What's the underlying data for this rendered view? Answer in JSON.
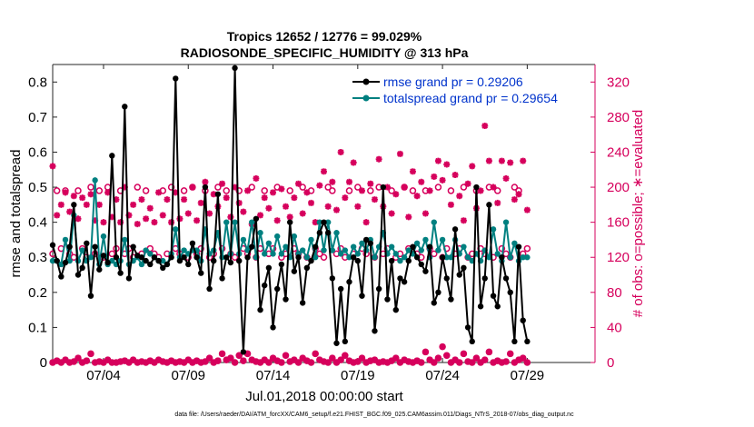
{
  "chart_data": {
    "type": "line",
    "title_line1": "Tropics 12652 / 12776 = 99.029%",
    "title_line2": "RADIOSONDE_SPECIFIC_HUMIDITY @ 313 hPa",
    "xlabel": "Jul.01,2018 00:00:00 start",
    "ylabel_left": "rmse and totalspread",
    "ylabel_right": "# of obs: o=possible; ∗=evaluated",
    "footer": "data file: /Users/raeder/DAI/ATM_forcXX/CAM6_setup/f.e21.FHIST_BGC.f09_025.CAM6assim.011/Diags_NTrS_2018-07/obs_diag_output.nc",
    "xlim": [
      1,
      33
    ],
    "ylim_left": [
      0,
      0.85
    ],
    "ylim_right": [
      0,
      340
    ],
    "x_ticks": [
      {
        "x": 4,
        "label": "07/04"
      },
      {
        "x": 9,
        "label": "07/09"
      },
      {
        "x": 14,
        "label": "07/14"
      },
      {
        "x": 19,
        "label": "07/19"
      },
      {
        "x": 24,
        "label": "07/24"
      },
      {
        "x": 29,
        "label": "07/29"
      }
    ],
    "y_ticks_left": [
      "0",
      "0.1",
      "0.2",
      "0.3",
      "0.4",
      "0.5",
      "0.6",
      "0.7",
      "0.8"
    ],
    "y_ticks_right": [
      "0",
      "40",
      "80",
      "120",
      "160",
      "200",
      "240",
      "280",
      "320"
    ],
    "colors": {
      "rmse": "#000000",
      "spread": "#008080",
      "obs": "#d6005c",
      "legend_text": "#0033cc"
    },
    "legend": [
      "rmse grand pr = 0.29206",
      "totalspread grand pr = 0.29654"
    ],
    "x_start": 1.0,
    "x_step": 0.25,
    "series": [
      {
        "name": "rmse",
        "values": [
          0.335,
          0.29,
          0.245,
          0.285,
          0.33,
          0.45,
          0.25,
          0.27,
          0.34,
          0.19,
          0.33,
          0.265,
          0.305,
          0.285,
          0.59,
          0.3,
          0.255,
          0.73,
          0.24,
          0.33,
          0.305,
          0.3,
          0.29,
          0.28,
          0.3,
          0.29,
          0.27,
          0.28,
          0.3,
          0.81,
          0.29,
          0.3,
          0.28,
          0.34,
          0.3,
          0.255,
          0.5,
          0.21,
          0.29,
          0.48,
          0.24,
          0.3,
          0.285,
          0.84,
          0.29,
          0.03,
          0.3,
          0.33,
          0.41,
          0.15,
          0.22,
          0.27,
          0.1,
          0.21,
          0.28,
          0.18,
          0.4,
          0.26,
          0.3,
          0.17,
          0.27,
          0.29,
          0.33,
          0.37,
          0.4,
          0.37,
          0.24,
          0.055,
          0.21,
          0.06,
          0.23,
          0.3,
          0.29,
          0.19,
          0.35,
          0.34,
          0.09,
          0.21,
          0.5,
          0.18,
          0.29,
          0.15,
          0.24,
          0.23,
          0.29,
          0.33,
          0.3,
          0.28,
          0.26,
          0.33,
          0.17,
          0.2,
          0.3,
          0.24,
          0.18,
          0.38,
          0.25,
          0.27,
          0.1,
          0.06,
          0.5,
          0.16,
          0.24,
          0.45,
          0.19,
          0.16,
          0.3,
          0.24,
          0.2,
          0.06,
          0.33,
          0.12,
          0.06
        ]
      },
      {
        "name": "totalspread",
        "values": [
          0.29,
          0.29,
          0.28,
          0.35,
          0.29,
          0.42,
          0.29,
          0.32,
          0.29,
          0.3,
          0.52,
          0.28,
          0.36,
          0.28,
          0.29,
          0.28,
          0.29,
          0.35,
          0.28,
          0.29,
          0.3,
          0.28,
          0.32,
          0.31,
          0.3,
          0.29,
          0.29,
          0.28,
          0.31,
          0.38,
          0.3,
          0.32,
          0.31,
          0.32,
          0.32,
          0.29,
          0.38,
          0.31,
          0.32,
          0.37,
          0.3,
          0.4,
          0.31,
          0.4,
          0.31,
          0.35,
          0.32,
          0.4,
          0.3,
          0.37,
          0.31,
          0.34,
          0.31,
          0.36,
          0.31,
          0.33,
          0.3,
          0.36,
          0.31,
          0.32,
          0.3,
          0.35,
          0.3,
          0.4,
          0.32,
          0.4,
          0.32,
          0.37,
          0.31,
          0.32,
          0.3,
          0.33,
          0.31,
          0.34,
          0.32,
          0.35,
          0.3,
          0.33,
          0.37,
          0.31,
          0.33,
          0.31,
          0.29,
          0.3,
          0.32,
          0.31,
          0.34,
          0.32,
          0.35,
          0.3,
          0.4,
          0.32,
          0.35,
          0.3,
          0.3,
          0.35,
          0.31,
          0.33,
          0.3,
          0.29,
          0.31,
          0.29,
          0.32,
          0.3,
          0.38,
          0.31,
          0.29,
          0.4,
          0.3,
          0.34,
          0.29,
          0.3,
          0.3
        ]
      },
      {
        "name": "obs_possible_large",
        "values": [
          124,
          196,
          130,
          196,
          124,
          120,
          196,
          130,
          120,
          200,
          124,
          196,
          120,
          200,
          124,
          130,
          196,
          124,
          130,
          120,
          200,
          124,
          196,
          130,
          124,
          120,
          196,
          124,
          200,
          130,
          124,
          196,
          120,
          200,
          124,
          130,
          196,
          120,
          124,
          200,
          130,
          196,
          124,
          120,
          196,
          130,
          124,
          200,
          120,
          130,
          196,
          124,
          130,
          200,
          120,
          124,
          196,
          130,
          124,
          200,
          120,
          196,
          130,
          124,
          120,
          200,
          196,
          124,
          130,
          120,
          196,
          124,
          200,
          130,
          124,
          196,
          120,
          200,
          124,
          130,
          196,
          120,
          124,
          200,
          130,
          196,
          124,
          120,
          196,
          130,
          124,
          200,
          120,
          130,
          196,
          124,
          130,
          200,
          120,
          124,
          196,
          130,
          124,
          200,
          120,
          196,
          130,
          124,
          120,
          200,
          196,
          124,
          130
        ]
      },
      {
        "name": "obs_evaluated_large",
        "values": [
          224,
          168,
          180,
          194,
          172,
          190,
          164,
          188,
          180,
          192,
          162,
          180,
          160,
          194,
          166,
          186,
          160,
          200,
          168,
          180,
          158,
          186,
          164,
          176,
          160,
          194,
          168,
          186,
          160,
          194,
          164,
          186,
          170,
          200,
          162,
          182,
          206,
          170,
          192,
          178,
          204,
          188,
          166,
          200,
          182,
          172,
          196,
          158,
          210,
          168,
          188,
          176,
          194,
          162,
          198,
          178,
          166,
          188,
          204,
          170,
          194,
          182,
          160,
          202,
          218,
          178,
          206,
          174,
          240,
          188,
          206,
          228,
          178,
          196,
          160,
          204,
          186,
          232,
          178,
          200,
          170,
          192,
          238,
          200,
          166,
          218,
          190,
          206,
          170,
          196,
          212,
          230,
          208,
          226,
          180,
          214,
          190,
          162,
          204,
          224,
          176,
          196,
          270,
          230,
          200,
          182,
          230,
          210,
          228,
          186,
          192,
          230,
          174
        ]
      },
      {
        "name": "obs_possible_small",
        "values": [
          0,
          2,
          0,
          3,
          0,
          1,
          5,
          0,
          2,
          10,
          0,
          1,
          0,
          3,
          0,
          0,
          1,
          2,
          0,
          3,
          0,
          1,
          0,
          2,
          0,
          3,
          1,
          0,
          2,
          0,
          1,
          0,
          3,
          0,
          2,
          0,
          1,
          5,
          0,
          2,
          10,
          3,
          5,
          0,
          8,
          2,
          10,
          3,
          1,
          0,
          3,
          0,
          5,
          2,
          0,
          8,
          1,
          3,
          0,
          5,
          2,
          0,
          10,
          3,
          1,
          0,
          5,
          0,
          3,
          8,
          2,
          0,
          1,
          5,
          0,
          2,
          3,
          0,
          1,
          0,
          2,
          5,
          0,
          3,
          1,
          0,
          2,
          0,
          12,
          3,
          0,
          5,
          18,
          8,
          0,
          3,
          0,
          10,
          1,
          0,
          5,
          0,
          3,
          12,
          0,
          2,
          0,
          1,
          10,
          0,
          3,
          5,
          0
        ]
      },
      {
        "name": "obs_evaluated_small",
        "values": [
          0,
          2,
          0,
          3,
          0,
          1,
          5,
          0,
          2,
          10,
          0,
          1,
          0,
          3,
          0,
          0,
          1,
          2,
          0,
          3,
          0,
          1,
          0,
          2,
          0,
          3,
          1,
          0,
          2,
          0,
          1,
          0,
          3,
          0,
          2,
          0,
          1,
          5,
          0,
          2,
          10,
          3,
          5,
          0,
          8,
          2,
          10,
          3,
          1,
          0,
          3,
          0,
          5,
          2,
          0,
          8,
          1,
          3,
          0,
          5,
          2,
          0,
          10,
          3,
          1,
          0,
          5,
          0,
          3,
          8,
          2,
          0,
          1,
          5,
          0,
          2,
          3,
          0,
          1,
          0,
          2,
          5,
          0,
          3,
          1,
          0,
          2,
          0,
          12,
          3,
          0,
          5,
          18,
          8,
          0,
          3,
          0,
          10,
          1,
          0,
          5,
          0,
          3,
          12,
          0,
          2,
          0,
          1,
          10,
          0,
          3,
          5,
          0
        ]
      }
    ]
  }
}
